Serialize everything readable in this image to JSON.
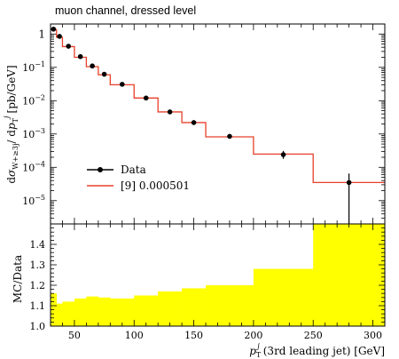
{
  "chart_data": [
    {
      "type": "line",
      "title": "muon channel, dressed level",
      "ylabel_parts": [
        "d",
        "σ",
        "W+≥3j",
        "/ d",
        "p",
        "T",
        "j",
        "[pb/GeV]"
      ],
      "xlim": [
        30,
        310
      ],
      "ylim": [
        2e-06,
        2
      ],
      "yscale": "log",
      "yticks": [
        {
          "v": 1,
          "label": "1"
        },
        {
          "v": 0.1,
          "base": "10",
          "exp": "−1"
        },
        {
          "v": 0.01,
          "base": "10",
          "exp": "−2"
        },
        {
          "v": 0.001,
          "base": "10",
          "exp": "−3"
        },
        {
          "v": 0.0001,
          "base": "10",
          "exp": "−4"
        },
        {
          "v": 1e-05,
          "base": "10",
          "exp": "−5"
        }
      ],
      "legend": {
        "placement": "lower-left",
        "data_label": "Data",
        "mc_label": "[9] 0.000501"
      },
      "bins": [
        30,
        35,
        40,
        50,
        60,
        70,
        80,
        100,
        120,
        140,
        160,
        200,
        250,
        310
      ],
      "mc_values": [
        1.35,
        0.8,
        0.42,
        0.2,
        0.105,
        0.06,
        0.03,
        0.012,
        0.0046,
        0.0022,
        0.00082,
        0.00025,
        3.5e-05
      ],
      "data_points": [
        {
          "x": 32.5,
          "y": 1.4,
          "err_lo": 0.2,
          "err_hi": 0.2
        },
        {
          "x": 37.5,
          "y": 0.85,
          "err_lo": 0.08,
          "err_hi": 0.08
        },
        {
          "x": 45,
          "y": 0.43,
          "err_lo": 0.03,
          "err_hi": 0.03
        },
        {
          "x": 55,
          "y": 0.21,
          "err_lo": 0.015,
          "err_hi": 0.015
        },
        {
          "x": 65,
          "y": 0.11,
          "err_lo": 0.008,
          "err_hi": 0.008
        },
        {
          "x": 75,
          "y": 0.062,
          "err_lo": 0.005,
          "err_hi": 0.005
        },
        {
          "x": 90,
          "y": 0.031,
          "err_lo": 0.002,
          "err_hi": 0.002
        },
        {
          "x": 110,
          "y": 0.012,
          "err_lo": 0.001,
          "err_hi": 0.001
        },
        {
          "x": 130,
          "y": 0.0046,
          "err_lo": 0.0004,
          "err_hi": 0.0004
        },
        {
          "x": 150,
          "y": 0.0022,
          "err_lo": 0.0002,
          "err_hi": 0.0002
        },
        {
          "x": 180,
          "y": 0.00085,
          "err_lo": 9e-05,
          "err_hi": 9e-05
        },
        {
          "x": 225,
          "y": 0.00024,
          "err_lo": 6e-05,
          "err_hi": 7e-05
        },
        {
          "x": 280,
          "y": 3.5e-05,
          "err_lo": 3.3e-05,
          "err_hi": 3e-05
        }
      ]
    },
    {
      "type": "area",
      "ylabel": "MC/Data",
      "xlabel_parts": [
        "p",
        "T",
        "j",
        "(3rd leading jet) [GeV]"
      ],
      "xlim": [
        30,
        310
      ],
      "ylim": [
        1.0,
        1.5
      ],
      "xticks": [
        50,
        100,
        150,
        200,
        250,
        300
      ],
      "yticks": [
        "1.0",
        "1.1",
        "1.2",
        "1.3",
        "1.4"
      ],
      "bins": [
        30,
        35,
        40,
        50,
        60,
        70,
        80,
        100,
        120,
        140,
        160,
        200,
        250,
        310
      ],
      "ratio_band": [
        1.16,
        1.11,
        1.12,
        1.135,
        1.145,
        1.14,
        1.135,
        1.15,
        1.17,
        1.185,
        1.2,
        1.28,
        1.5
      ],
      "band_color": "#ffff00",
      "line_color": "#e8402a"
    }
  ]
}
